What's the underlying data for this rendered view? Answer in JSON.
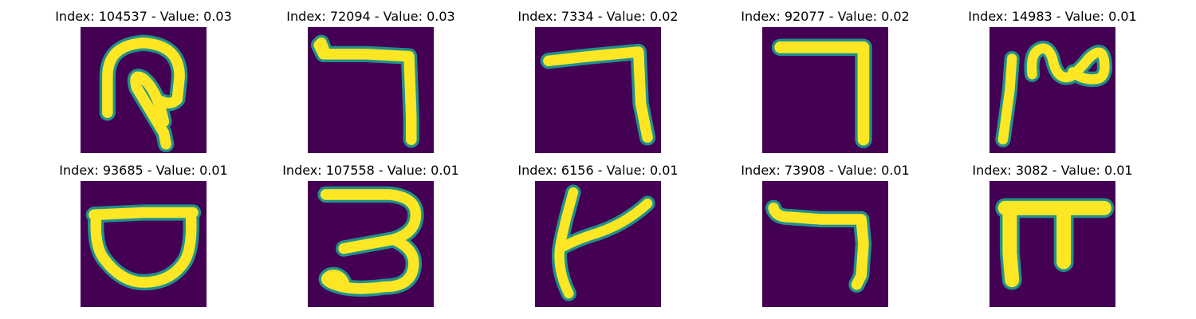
{
  "figure": {
    "colormap": {
      "background": "#440154",
      "edge": "#21918c",
      "stroke": "#fde725"
    },
    "panels": [
      {
        "title": "Index: 104537 - Value: 0.03",
        "index": 104537,
        "value": 0.03,
        "glyph": "hook-loop-icon"
      },
      {
        "title": "Index: 72094 - Value: 0.03",
        "index": 72094,
        "value": 0.03,
        "glyph": "resh-stroke-icon"
      },
      {
        "title": "Index: 7334 - Value: 0.02",
        "index": 7334,
        "value": 0.02,
        "glyph": "angle-stroke-icon"
      },
      {
        "title": "Index: 92077 - Value: 0.02",
        "index": 92077,
        "value": 0.02,
        "glyph": "angle-stroke-icon"
      },
      {
        "title": "Index: 14983 - Value: 0.01",
        "index": 14983,
        "value": 0.01,
        "glyph": "wave-stroke-icon"
      },
      {
        "title": "Index: 93685 - Value: 0.01",
        "index": 93685,
        "value": 0.01,
        "glyph": "bowl-stroke-icon"
      },
      {
        "title": "Index: 107558 - Value: 0.01",
        "index": 107558,
        "value": 0.01,
        "glyph": "three-stroke-icon"
      },
      {
        "title": "Index: 6156 - Value: 0.01",
        "index": 6156,
        "value": 0.01,
        "glyph": "branch-stroke-icon"
      },
      {
        "title": "Index: 73908 - Value: 0.01",
        "index": 73908,
        "value": 0.01,
        "glyph": "short-angle-stroke-icon"
      },
      {
        "title": "Index: 3082 - Value: 0.01",
        "index": 3082,
        "value": 0.01,
        "glyph": "pi-stroke-icon"
      }
    ]
  }
}
